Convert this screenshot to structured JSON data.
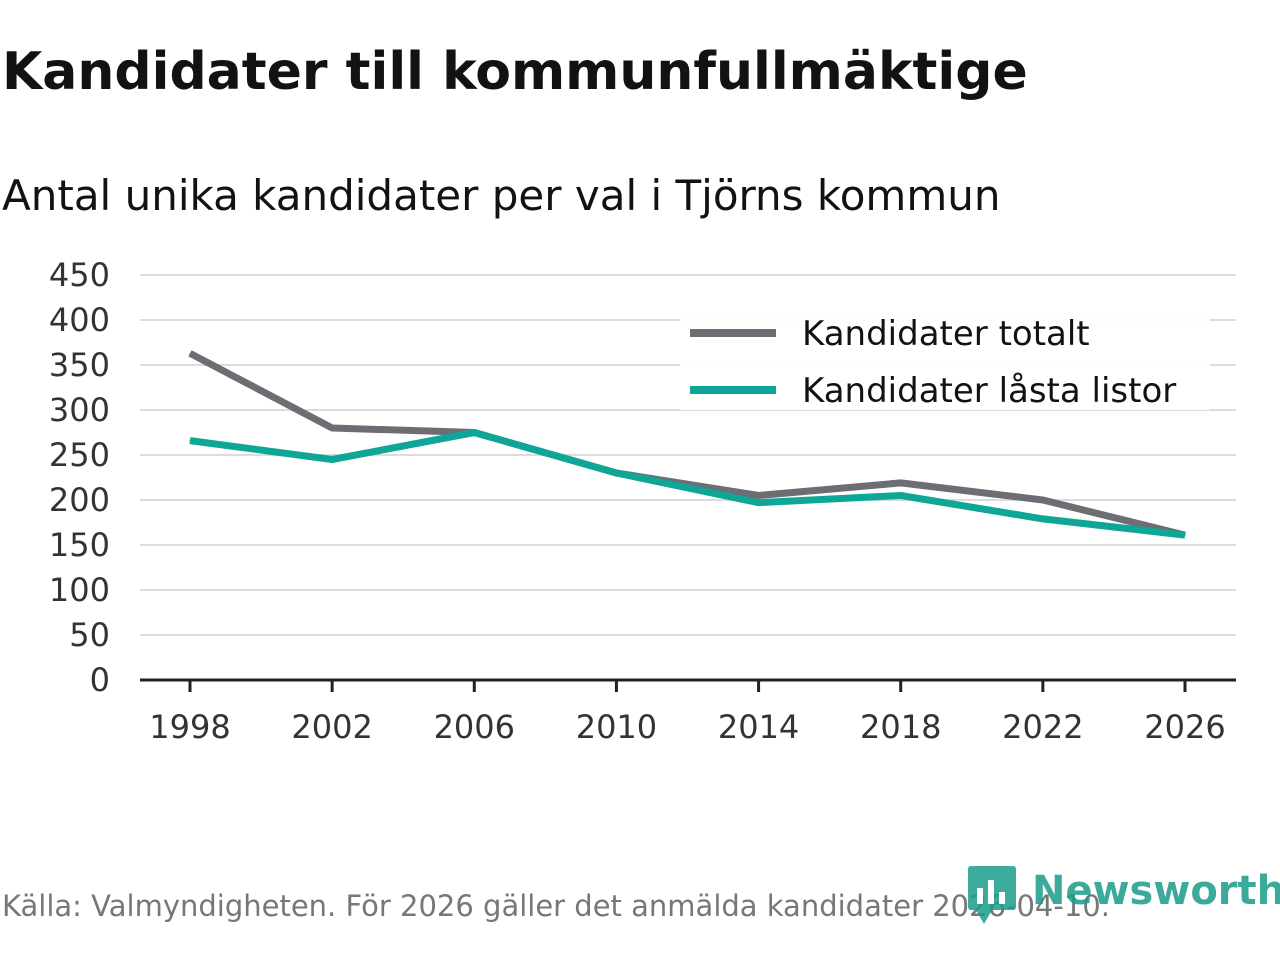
{
  "header": {
    "title": "Kandidater till kommunfullmäktige",
    "subtitle": "Antal unika kandidater per val i Tjörns kommun"
  },
  "footer": {
    "source": "Källa: Valmyndigheten. För 2026 gäller det anmälda kandidater 2026-04-10."
  },
  "brand": {
    "name": "Newsworthy",
    "color": "#1a9c8a",
    "icon": "bar-chart-icon"
  },
  "colors": {
    "series_total": "#6d6e73",
    "series_locked": "#0ea697",
    "grid": "#dcdcdc",
    "axis": "#222222"
  },
  "chart_data": {
    "type": "line",
    "title": "Kandidater till kommunfullmäktige",
    "subtitle": "Antal unika kandidater per val i Tjörns kommun",
    "xlabel": "",
    "ylabel": "",
    "x": [
      "1998",
      "2002",
      "2006",
      "2010",
      "2014",
      "2018",
      "2022",
      "2026"
    ],
    "ylim": [
      0,
      450
    ],
    "yticks": [
      "0",
      "50",
      "100",
      "150",
      "200",
      "250",
      "300",
      "350",
      "400",
      "450"
    ],
    "grid": true,
    "legend_position": "top-right",
    "series": [
      {
        "name": "Kandidater totalt",
        "color": "#6d6e73",
        "values": [
          363,
          280,
          275,
          230,
          205,
          219,
          200,
          161
        ]
      },
      {
        "name": "Kandidater låsta listor",
        "color": "#0ea697",
        "values": [
          266,
          245,
          275,
          230,
          197,
          205,
          179,
          161
        ]
      }
    ]
  }
}
